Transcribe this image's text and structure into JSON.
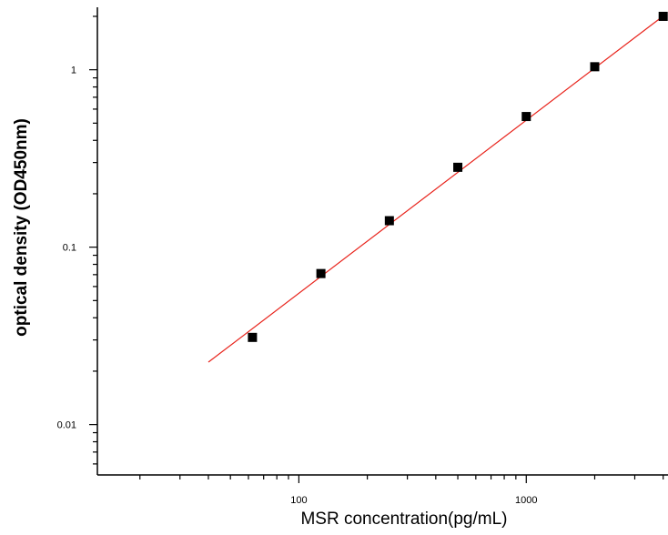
{
  "chart_data": {
    "type": "scatter",
    "title": "",
    "xlabel": "MSR concentration(pg/mL)",
    "ylabel": "optical density (OD450nm)",
    "xscale": "log",
    "yscale": "log",
    "xlim": [
      13,
      4200
    ],
    "ylim": [
      0.0052,
      2.25
    ],
    "grid": false,
    "legend": "none",
    "x_ticks": [
      {
        "value": 100,
        "label": "100"
      },
      {
        "value": 1000,
        "label": "1000"
      }
    ],
    "y_ticks": [
      {
        "value": 0.01,
        "label": "0.01"
      },
      {
        "value": 0.1,
        "label": "0.1"
      },
      {
        "value": 1,
        "label": "1"
      }
    ],
    "series": [
      {
        "type": "scatter",
        "color": "#000000",
        "marker": "square",
        "x": [
          62.5,
          125,
          250,
          500,
          1000,
          2000,
          4000
        ],
        "y": [
          0.031,
          0.071,
          0.141,
          0.282,
          0.545,
          1.04,
          2.0
        ]
      },
      {
        "type": "line",
        "color": "#e8231b",
        "fit": "power",
        "x": [
          40,
          4000
        ],
        "y": [
          0.0225,
          2.01
        ]
      }
    ]
  }
}
